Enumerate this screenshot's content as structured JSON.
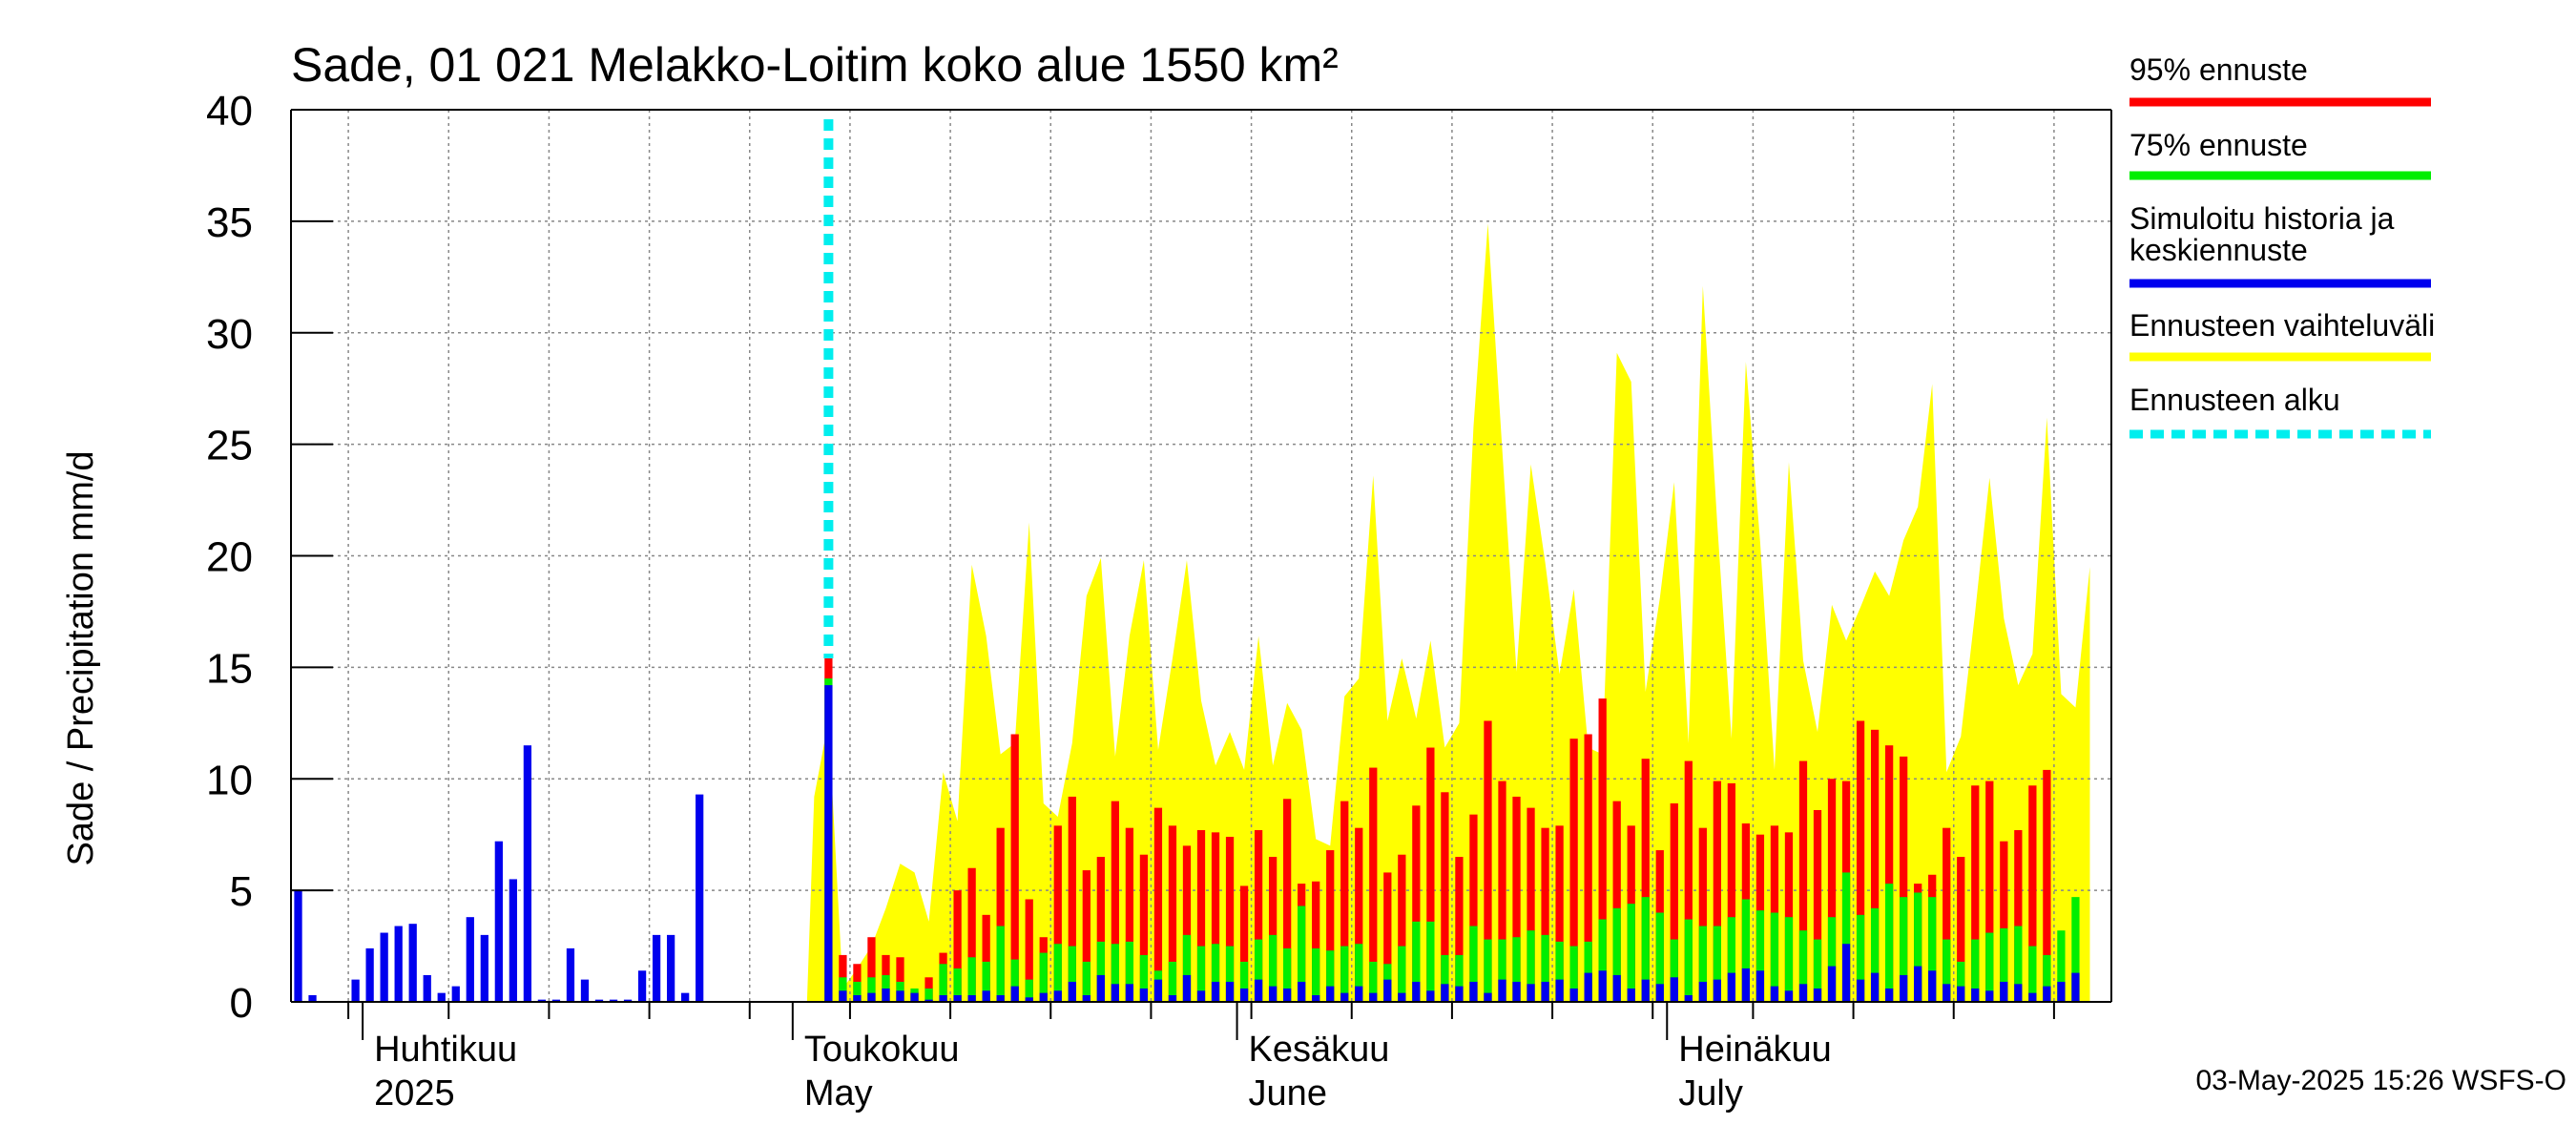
{
  "chart_data": {
    "type": "bar",
    "title": "Sade, 01 021 Melakko-Loitim koko alue 1550 km²",
    "ylabel": "Sade / Precipitation   mm/d",
    "ylim": [
      0,
      40
    ],
    "yticks": [
      0,
      5,
      10,
      15,
      20,
      25,
      30,
      35,
      40
    ],
    "x_start_date": "2025-03-27",
    "x_end_date": "2025-07-31",
    "forecast_start_date": "2025-05-03",
    "grid": true,
    "legend_position": "right",
    "month_labels": [
      {
        "name": "Huhtikuu",
        "sub": "2025",
        "date": "2025-04-01"
      },
      {
        "name": "Toukokuu",
        "sub": "May",
        "date": "2025-05-01"
      },
      {
        "name": "Kesäkuu",
        "sub": "June",
        "date": "2025-06-01"
      },
      {
        "name": "Heinäkuu",
        "sub": "July",
        "date": "2025-07-01"
      }
    ],
    "history": {
      "name": "Simuloitu historia ja keskiennuste",
      "start_date": "2025-03-27",
      "values": [
        5.0,
        0.3,
        0,
        0,
        1.0,
        2.4,
        3.1,
        3.4,
        3.5,
        1.2,
        0.4,
        0.7,
        3.8,
        3.0,
        7.2,
        5.5,
        11.5,
        0.1,
        0.1,
        2.4,
        1.0,
        0.1,
        0.1,
        0.1,
        1.4,
        3.0,
        3.0,
        0.4,
        9.3
      ]
    },
    "forecast": {
      "start_date": "2025-05-03",
      "mean": [
        14.2,
        0.5,
        0.3,
        0.4,
        0.6,
        0.5,
        0.4,
        0.1,
        0.3,
        0.3,
        0.3,
        0.5,
        0.3,
        0.7,
        0.2,
        0.4,
        0.5,
        0.9,
        0.3,
        1.2,
        0.8,
        0.8,
        0.6,
        1.0,
        0.3,
        1.2,
        0.5,
        0.9,
        0.9,
        0.6,
        1.0,
        0.7,
        0.6,
        0.9,
        0.3,
        0.7,
        0.4,
        0.7,
        0.4,
        1.0,
        0.4,
        0.9,
        0.5,
        0.8,
        0.7,
        0.9,
        0.4,
        1.0,
        0.9,
        0.8,
        0.9,
        1.0,
        0.6,
        1.3,
        1.4,
        1.2,
        0.6,
        1.0,
        0.8,
        1.1,
        0.3,
        0.9,
        1.0,
        1.3,
        1.5,
        1.4,
        0.7,
        0.5,
        0.8,
        0.6,
        1.6,
        2.6,
        1.0,
        1.3,
        0.6,
        1.2,
        1.6,
        1.4,
        0.8,
        0.7,
        0.6,
        0.5,
        0.9,
        0.8,
        0.4,
        0.7,
        0.9,
        1.3
      ],
      "p75": [
        14.5,
        1.1,
        0.9,
        1.1,
        1.2,
        0.9,
        0.6,
        0.6,
        1.7,
        1.5,
        2.0,
        1.8,
        3.4,
        1.9,
        1.0,
        2.2,
        2.6,
        2.5,
        1.8,
        2.7,
        2.6,
        2.7,
        2.1,
        1.4,
        1.8,
        3.0,
        2.5,
        2.6,
        2.5,
        1.8,
        2.8,
        3.0,
        2.4,
        4.3,
        2.4,
        2.3,
        2.5,
        2.6,
        1.8,
        1.7,
        2.5,
        3.6,
        3.6,
        2.1,
        2.1,
        3.4,
        2.8,
        2.8,
        2.9,
        3.2,
        3.0,
        2.7,
        2.5,
        2.7,
        3.7,
        4.2,
        4.4,
        4.7,
        4.0,
        2.8,
        3.7,
        3.4,
        3.4,
        3.8,
        4.6,
        4.1,
        4.0,
        3.8,
        3.2,
        2.8,
        3.8,
        5.8,
        3.9,
        4.2,
        5.3,
        4.7,
        4.9,
        4.7,
        2.8,
        1.8,
        2.8,
        3.1,
        3.3,
        3.4,
        2.5,
        2.1,
        3.2,
        4.7
      ],
      "p95": [
        15.4,
        2.1,
        1.7,
        2.9,
        2.1,
        2.0,
        0.5,
        1.1,
        2.2,
        5.0,
        6.0,
        3.9,
        7.8,
        12.0,
        4.6,
        2.9,
        7.9,
        9.2,
        5.9,
        6.5,
        9.0,
        7.8,
        6.6,
        8.7,
        7.9,
        7.0,
        7.7,
        7.6,
        7.4,
        5.2,
        7.7,
        6.5,
        9.1,
        5.3,
        5.4,
        6.8,
        9.0,
        7.8,
        10.5,
        5.8,
        6.6,
        8.8,
        11.4,
        9.4,
        6.5,
        8.4,
        12.6,
        9.9,
        9.2,
        8.7,
        7.8,
        7.9,
        11.8,
        12.0,
        13.6,
        9.0,
        7.9,
        10.9,
        6.8,
        8.9,
        10.8,
        7.8,
        9.9,
        9.8,
        8.0,
        7.5,
        7.9,
        7.6,
        10.8,
        8.6,
        10.0,
        9.9,
        12.6,
        12.2,
        11.5,
        11.0,
        5.3,
        5.7,
        7.8,
        6.5,
        9.7,
        9.9,
        7.2,
        7.7,
        9.7,
        10.4
      ]
    },
    "range_upper": [
      9.2,
      12.6,
      0.6,
      1.5,
      2.5,
      4.2,
      6.2,
      5.8,
      3.6,
      10.3,
      8.1,
      19.6,
      16.4,
      11.1,
      11.6,
      21.5,
      8.9,
      8.3,
      11.6,
      18.2,
      19.9,
      11.0,
      16.4,
      19.8,
      11.3,
      15.4,
      19.8,
      13.5,
      10.6,
      12.1,
      10.4,
      16.4,
      10.6,
      13.4,
      12.2,
      7.3,
      7.0,
      13.7,
      14.5,
      23.6,
      12.6,
      15.4,
      12.7,
      16.2,
      11.4,
      12.5,
      25.8,
      34.9,
      24.8,
      14.8,
      24.1,
      19.7,
      14.7,
      18.5,
      11.4,
      11.1,
      29.1,
      27.8,
      13.9,
      18.1,
      23.3,
      11.6,
      32.1,
      21.5,
      11.8,
      28.7,
      20.6,
      10.4,
      24.2,
      15.3,
      12.1,
      17.8,
      16.2,
      17.7,
      19.3,
      18.2,
      20.7,
      22.2,
      27.7,
      10.3,
      11.9,
      17.5,
      23.5,
      17.2,
      14.2,
      15.6,
      26.2,
      13.8,
      13.2,
      19.5
    ],
    "legend": [
      {
        "label": "95% ennuste",
        "color": "#ff0000",
        "style": "solid"
      },
      {
        "label": "75% ennuste",
        "color": "#00ee00",
        "style": "solid"
      },
      {
        "label": "Simuloitu historia ja",
        "label2": "keskiennuste",
        "color": "#0000ee",
        "style": "solid"
      },
      {
        "label": "Ennusteen vaihteluväli",
        "color": "#ffff00",
        "style": "solid"
      },
      {
        "label": "Ennusteen alku",
        "color": "#00eeee",
        "style": "dashed"
      }
    ],
    "colors": {
      "p95": "#ff0000",
      "p75": "#00ee00",
      "mean": "#0000ee",
      "range": "#ffff00",
      "forecast_start": "#00eeee",
      "grid": "#888888"
    }
  },
  "footer": "03-May-2025 15:26 WSFS-O"
}
